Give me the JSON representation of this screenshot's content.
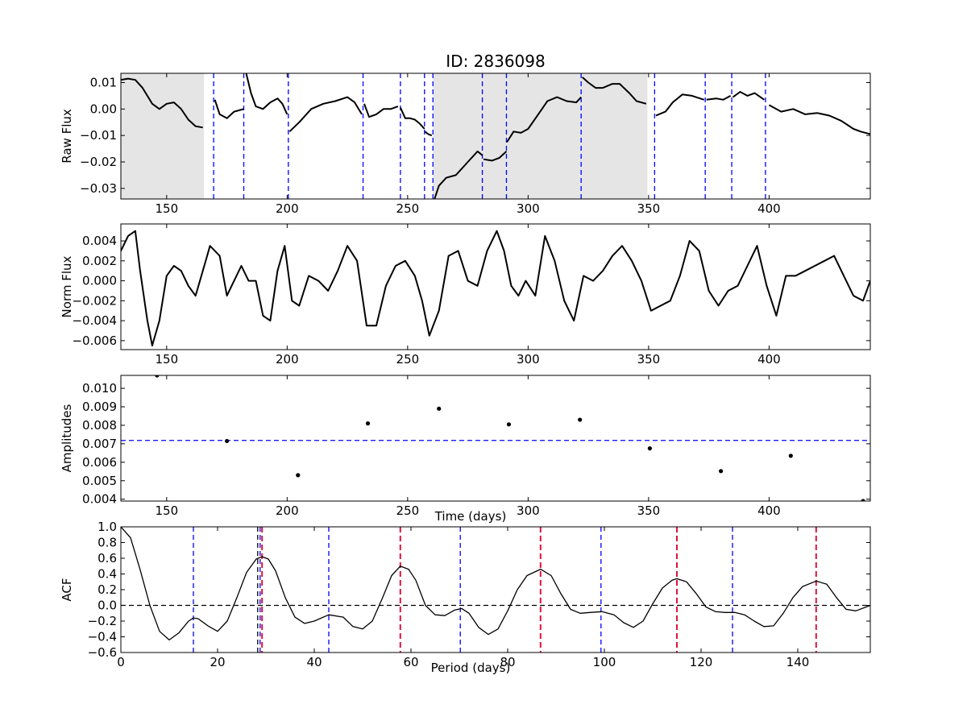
{
  "chart_data": [
    {
      "type": "line",
      "title": "ID: 2836098",
      "ylabel": "Raw Flux",
      "xlim": [
        131,
        442
      ],
      "ylim": [
        -0.034,
        0.0135
      ],
      "xticks": [
        150,
        200,
        250,
        300,
        350,
        400
      ],
      "xtick_labels": [
        "150",
        "200",
        "250",
        "300",
        "350",
        "400"
      ],
      "yticks": [
        0.01,
        0.0,
        -0.01,
        -0.02,
        -0.03
      ],
      "ytick_labels": [
        "0.01",
        "0.00",
        "−0.01",
        "−0.02",
        "−0.03"
      ],
      "shaded_regions": [
        [
          131,
          165.5
        ],
        [
          260.5,
          349.5
        ]
      ],
      "quarter_boundaries": [
        169.5,
        182,
        200.5,
        231.5,
        247,
        257,
        260.5,
        281,
        291,
        322,
        352.5,
        373.5,
        384.5,
        398.5
      ],
      "series": [
        {
          "segment": 1,
          "x": [
            131,
            134,
            137,
            140,
            144,
            147,
            150,
            153,
            156,
            159,
            162,
            165
          ],
          "y": [
            0.011,
            0.0115,
            0.011,
            0.008,
            0.002,
            0.0,
            0.002,
            0.0025,
            0.0,
            -0.004,
            -0.0065,
            -0.007
          ]
        },
        {
          "segment": 2,
          "x": [
            170,
            172,
            175,
            178,
            182
          ],
          "y": [
            0.0035,
            -0.002,
            -0.0035,
            -0.001,
            0.0
          ]
        },
        {
          "segment": 3,
          "x": [
            183,
            185,
            187,
            190,
            193,
            196,
            198,
            200
          ],
          "y": [
            0.0135,
            0.006,
            0.001,
            0.0,
            0.0025,
            0.004,
            0.002,
            -0.002
          ]
        },
        {
          "segment": 4,
          "x": [
            201,
            205,
            210,
            215,
            220,
            225,
            228,
            231
          ],
          "y": [
            -0.0085,
            -0.005,
            0.0,
            0.002,
            0.003,
            0.0045,
            0.0025,
            -0.002
          ]
        },
        {
          "segment": 5,
          "x": [
            232,
            234,
            237,
            240,
            243,
            246
          ],
          "y": [
            0.002,
            -0.003,
            -0.002,
            0.0,
            0.0,
            0.001
          ]
        },
        {
          "segment": 6,
          "x": [
            247,
            249,
            251,
            253,
            255,
            257
          ],
          "y": [
            0.0005,
            -0.0035,
            -0.0035,
            -0.004,
            -0.0055,
            -0.0075
          ]
        },
        {
          "segment": 7,
          "x": [
            257.2,
            258.5,
            260
          ],
          "y": [
            -0.0085,
            -0.0095,
            -0.01
          ]
        },
        {
          "segment": 8,
          "x": [
            261,
            263,
            266,
            270,
            275,
            279,
            281
          ],
          "y": [
            -0.0345,
            -0.029,
            -0.026,
            -0.025,
            -0.02,
            -0.016,
            -0.0175
          ]
        },
        {
          "segment": 9,
          "x": [
            281.5,
            285,
            288,
            291
          ],
          "y": [
            -0.019,
            -0.0195,
            -0.0185,
            -0.016
          ]
        },
        {
          "segment": 10,
          "x": [
            291.2,
            294,
            297,
            300,
            305,
            308,
            312,
            316,
            320,
            322
          ],
          "y": [
            -0.0125,
            -0.0085,
            -0.009,
            -0.0075,
            -0.001,
            0.003,
            0.0045,
            0.003,
            0.0025,
            0.0045
          ]
        },
        {
          "segment": 11,
          "x": [
            322.5,
            325,
            328,
            331,
            335,
            338,
            342,
            345,
            349
          ],
          "y": [
            0.012,
            0.01,
            0.008,
            0.008,
            0.0095,
            0.0095,
            0.006,
            0.003,
            0.002
          ]
        },
        {
          "segment": 12,
          "x": [
            353,
            357,
            360,
            364,
            368,
            373
          ],
          "y": [
            -0.0025,
            -0.001,
            0.0025,
            0.0055,
            0.005,
            0.0035
          ]
        },
        {
          "segment": 13,
          "x": [
            374,
            378,
            381,
            384
          ],
          "y": [
            0.0035,
            0.004,
            0.0035,
            0.005
          ]
        },
        {
          "segment": 14,
          "x": [
            385,
            388,
            391,
            394,
            398
          ],
          "y": [
            0.0045,
            0.0065,
            0.005,
            0.006,
            0.0035
          ]
        },
        {
          "segment": 15,
          "x": [
            400,
            405,
            410,
            415,
            420,
            425,
            430,
            435,
            438,
            442
          ],
          "y": [
            0.0015,
            -0.001,
            0.0,
            -0.002,
            -0.0015,
            -0.0025,
            -0.0045,
            -0.0075,
            -0.0085,
            -0.0095
          ]
        }
      ]
    },
    {
      "type": "line",
      "ylabel": "Norm Flux",
      "xlim": [
        131,
        442
      ],
      "ylim": [
        -0.0069,
        0.0057
      ],
      "xticks": [
        150,
        200,
        250,
        300,
        350,
        400
      ],
      "xtick_labels": [
        "150",
        "200",
        "250",
        "300",
        "350",
        "400"
      ],
      "yticks": [
        0.004,
        0.002,
        0.0,
        -0.002,
        -0.004,
        -0.006
      ],
      "ytick_labels": [
        "0.004",
        "0.002",
        "0.000",
        "−0.002",
        "−0.004",
        "−0.006"
      ],
      "series": [
        {
          "x": [
            131,
            134,
            137,
            139,
            142,
            144,
            147,
            150,
            153,
            156,
            159,
            162,
            165,
            168,
            172,
            175,
            178,
            181,
            184,
            187,
            190,
            193,
            196,
            199,
            202,
            205,
            209,
            213,
            217,
            221,
            225,
            229,
            233,
            237,
            241,
            245,
            249,
            253,
            256,
            259,
            263,
            267,
            271,
            275,
            279,
            283,
            287,
            290,
            293,
            296,
            299,
            303,
            307,
            311,
            315,
            319,
            323,
            327,
            331,
            335,
            339,
            343,
            347,
            351,
            355,
            359,
            363,
            367,
            371,
            375,
            379,
            383,
            387,
            391,
            395,
            399,
            403,
            407,
            411,
            415,
            419,
            423,
            427,
            431,
            435,
            439,
            442
          ],
          "y": [
            0.003,
            0.0045,
            0.005,
            0.001,
            -0.004,
            -0.0065,
            -0.004,
            0.0005,
            0.0015,
            0.001,
            -0.0005,
            -0.0015,
            0.001,
            0.0035,
            0.0025,
            -0.0015,
            0.0,
            0.0015,
            0.0,
            0.0,
            -0.0035,
            -0.004,
            0.001,
            0.0035,
            -0.002,
            -0.0025,
            0.0005,
            0.0,
            -0.001,
            0.001,
            0.0035,
            0.002,
            -0.0045,
            -0.0045,
            -0.0005,
            0.0015,
            0.002,
            0.0005,
            -0.002,
            -0.0055,
            -0.003,
            0.0025,
            0.003,
            0.0,
            -0.0005,
            0.003,
            0.005,
            0.003,
            -0.0005,
            -0.0015,
            0.0,
            -0.0015,
            0.0045,
            0.002,
            -0.002,
            -0.004,
            0.0005,
            0.0,
            0.001,
            0.0025,
            0.0035,
            0.002,
            0.0,
            -0.003,
            -0.0025,
            -0.002,
            0.0005,
            0.004,
            0.003,
            -0.001,
            -0.0025,
            -0.001,
            -0.0005,
            0.0015,
            0.0035,
            -0.0005,
            -0.0035,
            0.0005,
            0.0005,
            0.001,
            0.0015,
            0.002,
            0.0025,
            0.0005,
            -0.0015,
            -0.002,
            0.0
          ]
        }
      ]
    },
    {
      "type": "scatter",
      "ylabel": "Amplitudes",
      "xlabel": "Time (days)",
      "xlim": [
        131,
        442
      ],
      "ylim": [
        0.0039,
        0.0107
      ],
      "xticks": [
        150,
        200,
        250,
        300,
        350,
        400
      ],
      "xtick_labels": [
        "150",
        "200",
        "250",
        "300",
        "350",
        "400"
      ],
      "yticks": [
        0.01,
        0.009,
        0.008,
        0.007,
        0.006,
        0.005,
        0.004
      ],
      "ytick_labels": [
        "0.010",
        "0.009",
        "0.008",
        "0.007",
        "0.006",
        "0.005",
        "0.004"
      ],
      "hline": 0.00718,
      "x": [
        146,
        175,
        204.5,
        233.5,
        263,
        292,
        321.5,
        350.5,
        380,
        409,
        439
      ],
      "y": [
        0.0107,
        0.00715,
        0.0053,
        0.0081,
        0.0089,
        0.00805,
        0.0083,
        0.00675,
        0.00552,
        0.00635,
        0.0039
      ]
    },
    {
      "type": "line",
      "ylabel": "ACF",
      "xlabel": "Period (days)",
      "xlim": [
        0,
        155
      ],
      "ylim": [
        -0.6,
        1.0
      ],
      "xticks": [
        0,
        20,
        40,
        60,
        80,
        100,
        120,
        140
      ],
      "xtick_labels": [
        "0",
        "20",
        "40",
        "60",
        "80",
        "100",
        "120",
        "140"
      ],
      "yticks": [
        1.0,
        0.8,
        0.6,
        0.4,
        0.2,
        0.0,
        -0.2,
        -0.4,
        -0.6
      ],
      "ytick_labels": [
        "1.0",
        "0.8",
        "0.6",
        "0.4",
        "0.2",
        "0.0",
        "−0.2",
        "−0.4",
        "−0.6"
      ],
      "hline": 0.0,
      "period_line": 28.3,
      "blue_lines": [
        15,
        28.8,
        43,
        70.2,
        99.3,
        126.5
      ],
      "red_lines": [
        29.2,
        57.8,
        86.8,
        115,
        143.8
      ],
      "series": [
        {
          "x": [
            0,
            2,
            4,
            6,
            8,
            10,
            12,
            14,
            15,
            16,
            18,
            20,
            22,
            24,
            26,
            28,
            29.2,
            30.5,
            32,
            34,
            36,
            38,
            40,
            43,
            46,
            48,
            50,
            52,
            54,
            56,
            57.8,
            59.5,
            61,
            63,
            65,
            67,
            69,
            70.5,
            72,
            74,
            76,
            78,
            80,
            82,
            84,
            86.8,
            89,
            91,
            93,
            95,
            97,
            99.5,
            102,
            104,
            106,
            108,
            110,
            112,
            114,
            115,
            117,
            119,
            121,
            123,
            125,
            127,
            129,
            131,
            133,
            135,
            137,
            139,
            141,
            143.8,
            146,
            148,
            150,
            152,
            155
          ],
          "y": [
            1.0,
            0.86,
            0.45,
            0.0,
            -0.33,
            -0.44,
            -0.35,
            -0.2,
            -0.16,
            -0.17,
            -0.26,
            -0.33,
            -0.2,
            0.1,
            0.42,
            0.59,
            0.62,
            0.59,
            0.44,
            0.1,
            -0.15,
            -0.23,
            -0.2,
            -0.12,
            -0.15,
            -0.27,
            -0.3,
            -0.2,
            0.08,
            0.38,
            0.5,
            0.46,
            0.32,
            0.0,
            -0.12,
            -0.13,
            -0.06,
            -0.04,
            -0.1,
            -0.28,
            -0.37,
            -0.3,
            -0.07,
            0.2,
            0.38,
            0.46,
            0.38,
            0.15,
            -0.05,
            -0.1,
            -0.09,
            -0.08,
            -0.12,
            -0.22,
            -0.28,
            -0.2,
            0.02,
            0.22,
            0.32,
            0.34,
            0.3,
            0.15,
            -0.02,
            -0.08,
            -0.09,
            -0.09,
            -0.12,
            -0.2,
            -0.27,
            -0.26,
            -0.1,
            0.1,
            0.24,
            0.31,
            0.27,
            0.1,
            -0.05,
            -0.07,
            0.0
          ]
        }
      ]
    }
  ]
}
